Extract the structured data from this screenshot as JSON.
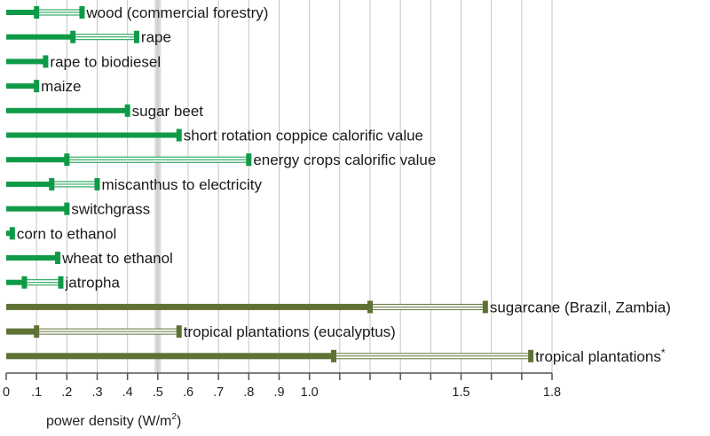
{
  "chart_data": {
    "type": "range-bar",
    "xlabel": "power density (W/m",
    "xlabel_superscript": "2",
    "xlabel_suffix": ")",
    "xlim": [
      0,
      1.8
    ],
    "emphasized_gridline": 0.5,
    "ticks": [
      {
        "value": 0,
        "label": "0"
      },
      {
        "value": 0.1,
        "label": ".1"
      },
      {
        "value": 0.2,
        "label": ".2"
      },
      {
        "value": 0.3,
        "label": ".3"
      },
      {
        "value": 0.4,
        "label": ".4"
      },
      {
        "value": 0.5,
        "label": ".5"
      },
      {
        "value": 0.6,
        "label": ".6"
      },
      {
        "value": 0.7,
        "label": ".7"
      },
      {
        "value": 0.8,
        "label": ".8"
      },
      {
        "value": 0.9,
        "label": ".9"
      },
      {
        "value": 1.0,
        "label": "1.0"
      },
      {
        "value": 1.5,
        "label": "1.5"
      },
      {
        "value": 1.8,
        "label": "1.8"
      }
    ],
    "gridlines": [
      0.1,
      0.2,
      0.3,
      0.4,
      0.5,
      0.6,
      0.7,
      0.8,
      0.9,
      1.0,
      1.1,
      1.2,
      1.3,
      1.4,
      1.5,
      1.6,
      1.7,
      1.8
    ],
    "colors": {
      "temperate": "#0f9a47",
      "tropical": "#5f7234",
      "range_fill": "#ffffff"
    },
    "rows": [
      {
        "label": "wood (commercial forestry)",
        "low": 0.1,
        "high": 0.25,
        "group": "temperate"
      },
      {
        "label": "rape",
        "low": 0.22,
        "high": 0.43,
        "group": "temperate"
      },
      {
        "label": "rape to biodiesel",
        "low": 0.13,
        "high": 0.13,
        "group": "temperate"
      },
      {
        "label": "maize",
        "low": 0.1,
        "high": 0.1,
        "group": "temperate"
      },
      {
        "label": "sugar beet",
        "low": 0.4,
        "high": 0.4,
        "group": "temperate"
      },
      {
        "label": "short rotation coppice calorific value",
        "low": 0.57,
        "high": 0.57,
        "group": "temperate"
      },
      {
        "label": "energy crops calorific value",
        "low": 0.2,
        "high": 0.8,
        "group": "temperate"
      },
      {
        "label": "miscanthus to electricity",
        "low": 0.15,
        "high": 0.3,
        "group": "temperate"
      },
      {
        "label": "switchgrass",
        "low": 0.2,
        "high": 0.2,
        "group": "temperate"
      },
      {
        "label": "corn to ethanol",
        "low": 0.02,
        "high": 0.02,
        "group": "temperate"
      },
      {
        "label": "wheat to ethanol",
        "low": 0.17,
        "high": 0.17,
        "group": "temperate"
      },
      {
        "label": "jatropha",
        "low": 0.06,
        "high": 0.18,
        "group": "temperate"
      },
      {
        "label": "sugarcane (Brazil, Zambia)",
        "low": 1.2,
        "high": 1.58,
        "group": "tropical"
      },
      {
        "label": "tropical plantations (eucalyptus)",
        "low": 0.1,
        "high": 0.57,
        "group": "tropical"
      },
      {
        "label": "tropical plantations",
        "label_suffix": "*",
        "low": 1.08,
        "high": 1.73,
        "group": "tropical"
      }
    ]
  }
}
